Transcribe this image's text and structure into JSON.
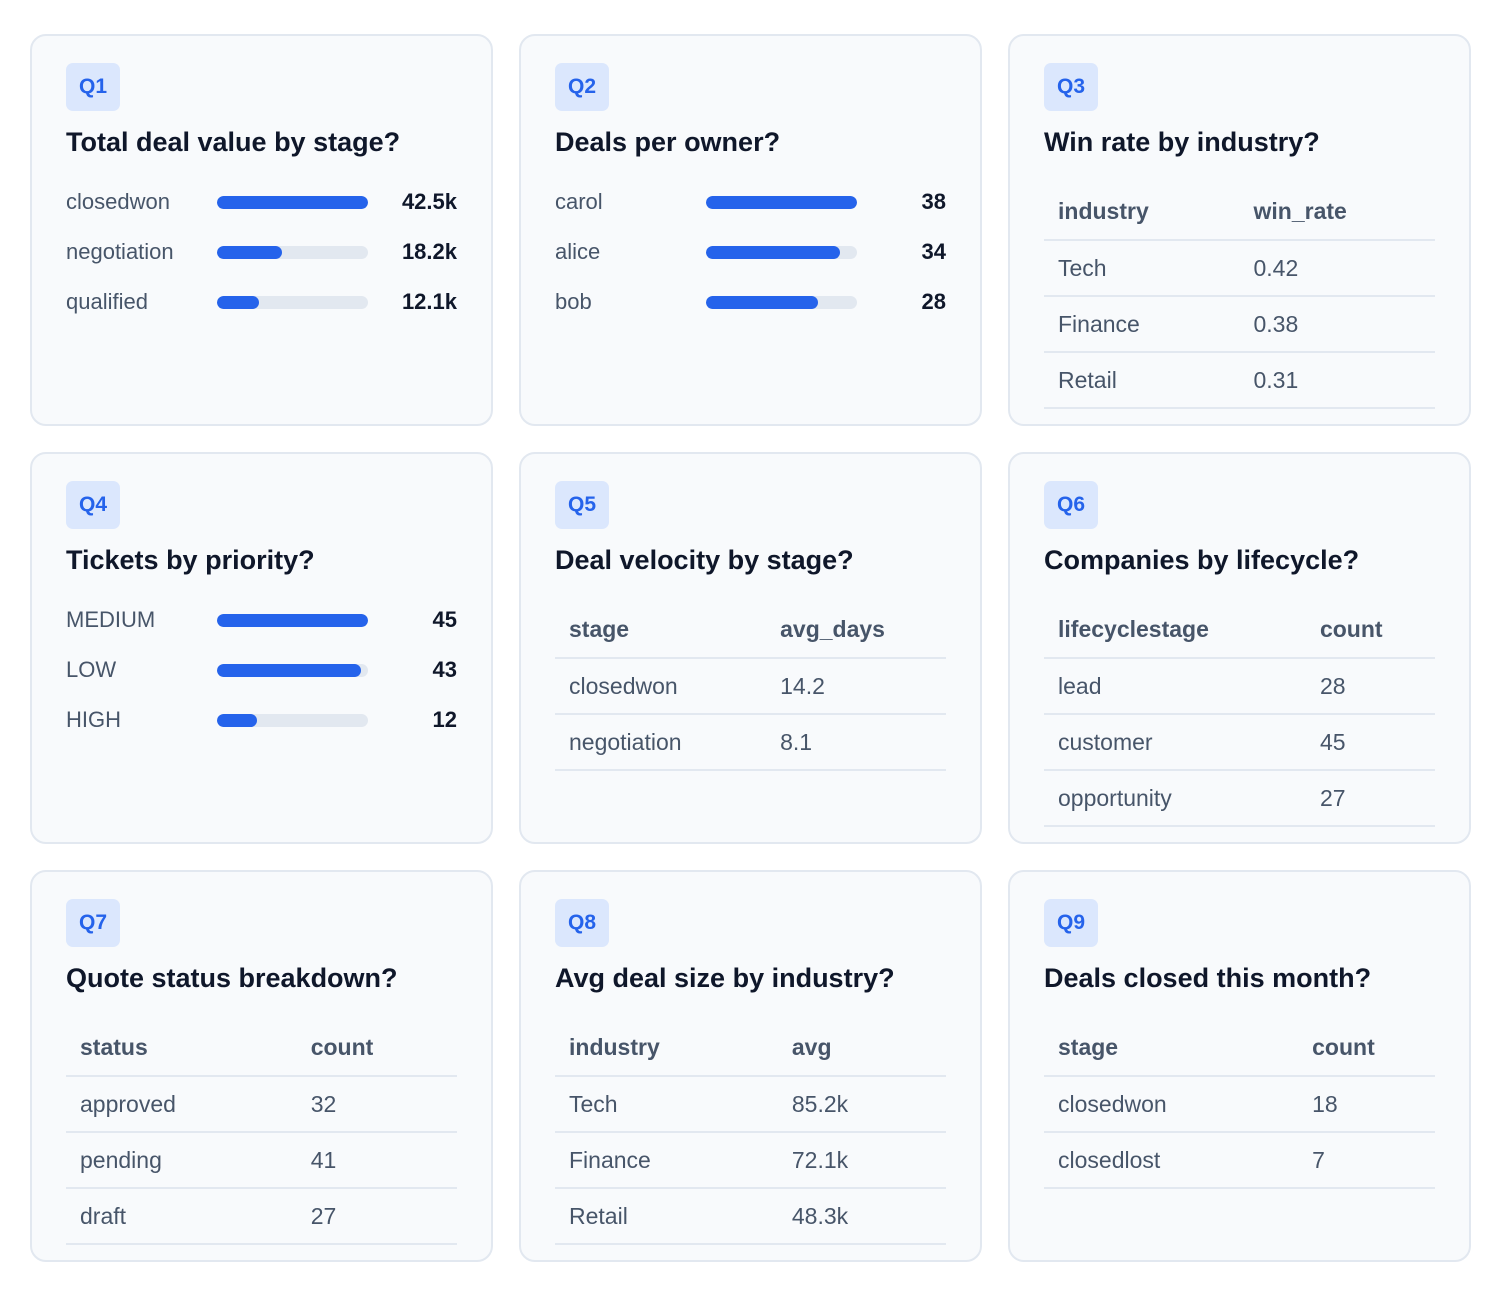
{
  "accent_color": "#2563eb",
  "track_color": "#e2e8f0",
  "cards": [
    {
      "badge": "Q1",
      "question": "Total deal value by stage?",
      "bars": [
        {
          "label": "closedwon",
          "value": "42.5k",
          "fraction": 1.0
        },
        {
          "label": "negotiation",
          "value": "18.2k",
          "fraction": 0.43
        },
        {
          "label": "qualified",
          "value": "12.1k",
          "fraction": 0.28
        }
      ]
    },
    {
      "badge": "Q2",
      "question": "Deals per owner?",
      "bars": [
        {
          "label": "carol",
          "value": "38",
          "fraction": 1.0
        },
        {
          "label": "alice",
          "value": "34",
          "fraction": 0.89
        },
        {
          "label": "bob",
          "value": "28",
          "fraction": 0.74
        }
      ]
    },
    {
      "badge": "Q3",
      "question": "Win rate by industry?",
      "columns": [
        "industry",
        "win_rate"
      ],
      "rows": [
        [
          "Tech",
          "0.42"
        ],
        [
          "Finance",
          "0.38"
        ],
        [
          "Retail",
          "0.31"
        ]
      ]
    },
    {
      "badge": "Q4",
      "question": "Tickets by priority?",
      "bars": [
        {
          "label": "MEDIUM",
          "value": "45",
          "fraction": 1.0
        },
        {
          "label": "LOW",
          "value": "43",
          "fraction": 0.955
        },
        {
          "label": "HIGH",
          "value": "12",
          "fraction": 0.267
        }
      ]
    },
    {
      "badge": "Q5",
      "question": "Deal velocity by stage?",
      "columns": [
        "stage",
        "avg_days"
      ],
      "rows": [
        [
          "closedwon",
          "14.2"
        ],
        [
          "negotiation",
          "8.1"
        ]
      ]
    },
    {
      "badge": "Q6",
      "question": "Companies by lifecycle?",
      "columns": [
        "lifecyclestage",
        "count"
      ],
      "rows": [
        [
          "lead",
          "28"
        ],
        [
          "customer",
          "45"
        ],
        [
          "opportunity",
          "27"
        ]
      ]
    },
    {
      "badge": "Q7",
      "question": "Quote status breakdown?",
      "columns": [
        "status",
        "count"
      ],
      "rows": [
        [
          "approved",
          "32"
        ],
        [
          "pending",
          "41"
        ],
        [
          "draft",
          "27"
        ]
      ]
    },
    {
      "badge": "Q8",
      "question": "Avg deal size by industry?",
      "columns": [
        "industry",
        "avg"
      ],
      "rows": [
        [
          "Tech",
          "85.2k"
        ],
        [
          "Finance",
          "72.1k"
        ],
        [
          "Retail",
          "48.3k"
        ]
      ]
    },
    {
      "badge": "Q9",
      "question": "Deals closed this month?",
      "columns": [
        "stage",
        "count"
      ],
      "rows": [
        [
          "closedwon",
          "18"
        ],
        [
          "closedlost",
          "7"
        ]
      ]
    }
  ]
}
